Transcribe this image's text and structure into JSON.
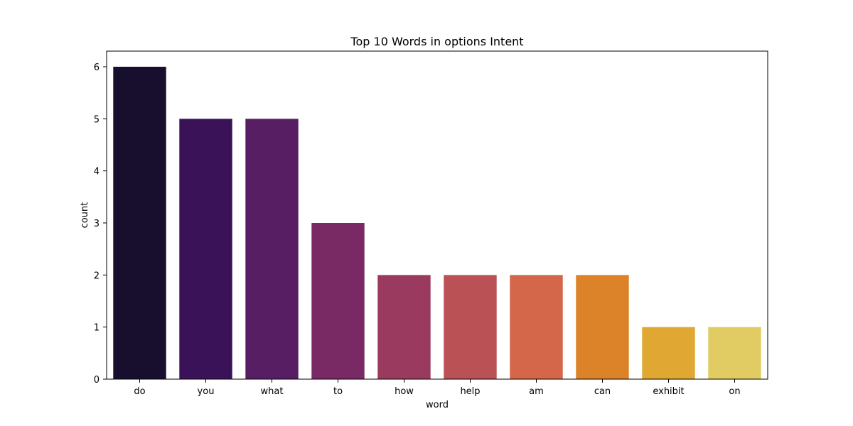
{
  "chart_data": {
    "type": "bar",
    "title": "Top 10 Words in options Intent",
    "xlabel": "word",
    "ylabel": "count",
    "categories": [
      "do",
      "you",
      "what",
      "to",
      "how",
      "help",
      "am",
      "can",
      "exhibit",
      "on"
    ],
    "values": [
      6,
      5,
      5,
      3,
      2,
      2,
      2,
      2,
      1,
      1
    ],
    "colors": [
      "#180f2f",
      "#3a1258",
      "#571e63",
      "#792963",
      "#9a3a5e",
      "#ba5154",
      "#d4674a",
      "#dc8228",
      "#e0a732",
      "#e0cc63"
    ],
    "yticks": [
      0,
      1,
      2,
      3,
      4,
      5,
      6
    ],
    "ylim": [
      0,
      6.3
    ],
    "grid": false,
    "legend": "none"
  }
}
